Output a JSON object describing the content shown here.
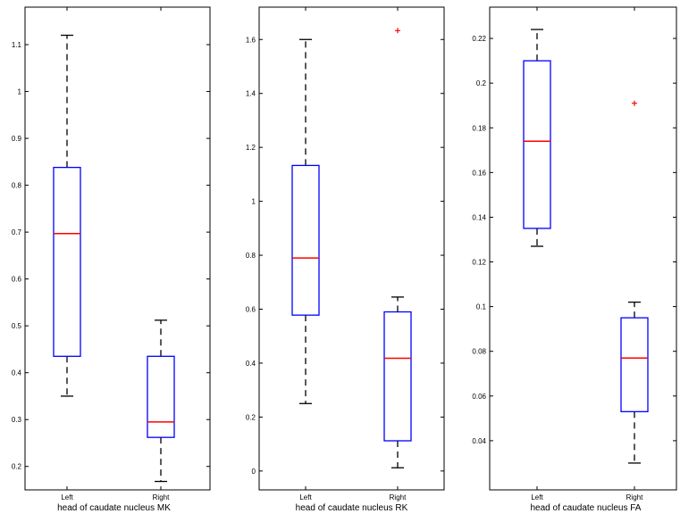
{
  "style": {
    "box_color": "#0000ff",
    "median_color": "#ff0000",
    "outlier_color": "#ff0000",
    "whisker_color": "#000000",
    "outlier_marker": "+"
  },
  "chart_data": [
    {
      "type": "boxplot",
      "title": "",
      "xlabel": "head of caudate nucleus MK",
      "ylabel": "",
      "ylim": [
        0.15,
        1.18
      ],
      "yticks": [
        "0.2",
        "0.3",
        "0.4",
        "0.5",
        "0.6",
        "0.7",
        "0.8",
        "0.9",
        "1",
        "1.1"
      ],
      "grid": false,
      "categories": [
        "Left",
        "Right"
      ],
      "boxes": [
        {
          "category": "Left",
          "whisker_low": 0.35,
          "q1": 0.435,
          "median": 0.697,
          "q3": 0.838,
          "whisker_high": 1.12,
          "outliers": []
        },
        {
          "category": "Right",
          "whisker_low": 0.168,
          "q1": 0.262,
          "median": 0.295,
          "q3": 0.435,
          "whisker_high": 0.512,
          "outliers": []
        }
      ]
    },
    {
      "type": "boxplot",
      "title": "",
      "xlabel": "head of caudate nucleus RK",
      "ylabel": "",
      "ylim": [
        -0.07,
        1.72
      ],
      "yticks": [
        "0",
        "0.2",
        "0.4",
        "0.6",
        "0.8",
        "1",
        "1.2",
        "1.4",
        "1.6"
      ],
      "grid": false,
      "categories": [
        "Left",
        "Right"
      ],
      "boxes": [
        {
          "category": "Left",
          "whisker_low": 0.25,
          "q1": 0.578,
          "median": 0.79,
          "q3": 1.133,
          "whisker_high": 1.6,
          "outliers": []
        },
        {
          "category": "Right",
          "whisker_low": 0.012,
          "q1": 0.112,
          "median": 0.418,
          "q3": 0.59,
          "whisker_high": 0.645,
          "outliers": [
            1.633
          ]
        }
      ]
    },
    {
      "type": "boxplot",
      "title": "",
      "xlabel": "head of caudate nucleus FA",
      "ylabel": "",
      "ylim": [
        0.018,
        0.234
      ],
      "yticks": [
        "0.04",
        "0.06",
        "0.08",
        "0.1",
        "0.12",
        "0.14",
        "0.16",
        "0.18",
        "0.2",
        "0.22"
      ],
      "grid": false,
      "categories": [
        "Left",
        "Right"
      ],
      "boxes": [
        {
          "category": "Left",
          "whisker_low": 0.127,
          "q1": 0.135,
          "median": 0.174,
          "q3": 0.21,
          "whisker_high": 0.224,
          "outliers": []
        },
        {
          "category": "Right",
          "whisker_low": 0.03,
          "q1": 0.053,
          "median": 0.077,
          "q3": 0.095,
          "whisker_high": 0.102,
          "outliers": [
            0.191
          ]
        }
      ]
    }
  ]
}
